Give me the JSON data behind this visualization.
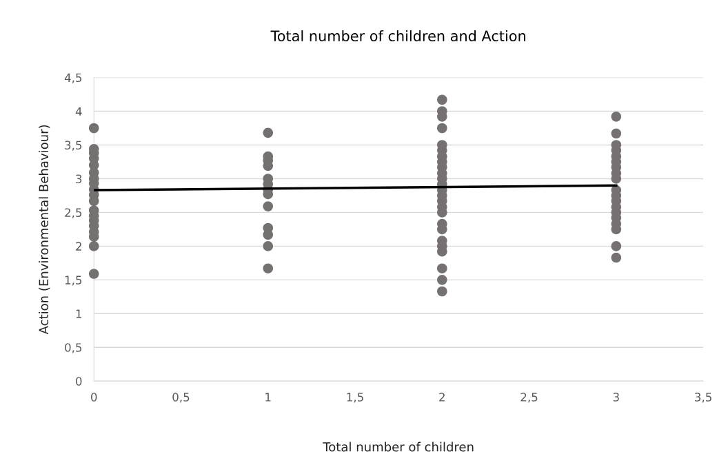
{
  "chart_data": {
    "type": "scatter",
    "title": "Total number of children and Action",
    "xlabel": "Total number of children",
    "ylabel": "Action (Environmental Behaviour)",
    "series": [
      {
        "color": "#767171",
        "marker": "circle",
        "x": [
          0,
          0,
          0,
          0,
          0,
          0,
          0,
          0,
          0,
          0,
          0,
          0,
          0,
          0,
          0,
          0,
          0,
          0,
          0,
          1,
          1,
          1,
          1,
          1,
          1,
          1,
          1,
          1,
          1,
          1,
          1,
          1,
          2,
          2,
          2,
          2,
          2,
          2,
          2,
          2,
          2,
          2,
          2,
          2,
          2,
          2,
          2,
          2,
          2,
          2,
          2,
          2,
          2,
          2,
          2,
          2,
          2,
          3,
          3,
          3,
          3,
          3,
          3,
          3,
          3,
          3,
          3,
          3,
          3,
          3,
          3,
          3,
          3,
          3,
          3,
          3
        ],
        "values": [
          3.75,
          3.44,
          3.38,
          3.3,
          3.2,
          3.09,
          3.0,
          2.93,
          2.84,
          2.76,
          2.67,
          2.53,
          2.45,
          2.38,
          2.3,
          2.21,
          2.14,
          2.0,
          1.59,
          3.68,
          3.33,
          3.27,
          3.19,
          3.0,
          2.92,
          2.84,
          2.77,
          2.59,
          2.27,
          2.17,
          2.0,
          1.67,
          4.17,
          4.0,
          3.92,
          3.75,
          3.5,
          3.42,
          3.33,
          3.25,
          3.17,
          3.08,
          3.0,
          2.92,
          2.83,
          2.75,
          2.67,
          2.58,
          2.5,
          2.33,
          2.25,
          2.08,
          2.0,
          1.92,
          1.67,
          1.5,
          1.33,
          3.92,
          3.67,
          3.5,
          3.42,
          3.33,
          3.25,
          3.17,
          3.08,
          3.0,
          2.83,
          2.75,
          2.67,
          2.58,
          2.5,
          2.42,
          2.33,
          2.25,
          2.0,
          1.83
        ]
      },
      {
        "type": "line",
        "color": "#000000",
        "marker": "none",
        "x": [
          0,
          3
        ],
        "values": [
          2.83,
          2.9
        ]
      }
    ],
    "xlim": [
      0,
      3.5
    ],
    "xticks": [
      0,
      {
        "value": 0.5,
        "label": "0,5"
      },
      1,
      {
        "value": 1.5,
        "label": "1,5"
      },
      2,
      {
        "value": 2.5,
        "label": "2,5"
      },
      3,
      {
        "value": 3.5,
        "label": "3,5"
      }
    ],
    "ylim": [
      0,
      4.5
    ],
    "yticks": [
      0,
      {
        "value": 0.5,
        "label": "0,5"
      },
      1,
      {
        "value": 1.5,
        "label": "1,5"
      },
      2,
      {
        "value": 2.5,
        "label": "2,5"
      },
      3,
      {
        "value": 3.5,
        "label": "3,5"
      },
      4,
      {
        "value": 4.5,
        "label": "4,5"
      }
    ],
    "grid": "y",
    "legend": false
  }
}
